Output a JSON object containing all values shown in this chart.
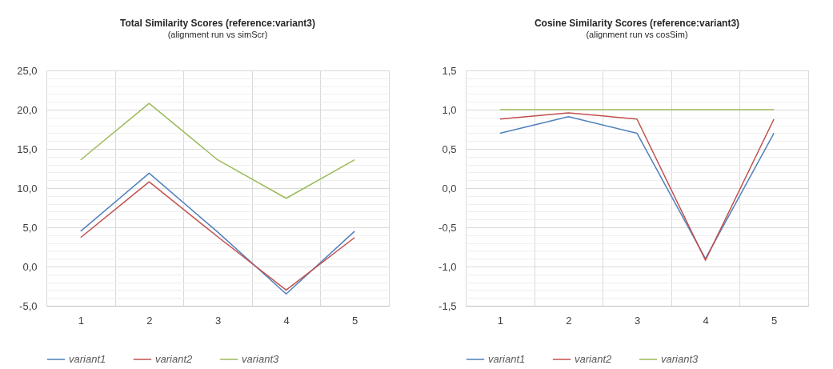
{
  "chart_data": [
    {
      "type": "line",
      "title": "Total Similarity Scores (reference:variant3)",
      "subtitle": "(alignment run vs simScr)",
      "categories": [
        "1",
        "2",
        "3",
        "4",
        "5"
      ],
      "series": [
        {
          "name": "variant1",
          "color": "#4f81bd",
          "values": [
            4.5,
            11.9,
            4.4,
            -3.5,
            4.5
          ]
        },
        {
          "name": "variant2",
          "color": "#c0504d",
          "values": [
            3.7,
            10.8,
            3.8,
            -3.0,
            3.7
          ]
        },
        {
          "name": "variant3",
          "color": "#9bbb59",
          "values": [
            13.6,
            20.8,
            13.6,
            8.7,
            13.6
          ]
        }
      ],
      "ylim": [
        -5,
        25
      ],
      "yticks": [
        {
          "value": -5,
          "label": "-5,0"
        },
        {
          "value": -4,
          "label": null
        },
        {
          "value": -3,
          "label": null
        },
        {
          "value": -2,
          "label": null
        },
        {
          "value": -1,
          "label": null
        },
        {
          "value": 0,
          "label": "0,0"
        },
        {
          "value": 1,
          "label": null
        },
        {
          "value": 2,
          "label": null
        },
        {
          "value": 3,
          "label": null
        },
        {
          "value": 4,
          "label": null
        },
        {
          "value": 5,
          "label": "5,0"
        },
        {
          "value": 6,
          "label": null
        },
        {
          "value": 7,
          "label": null
        },
        {
          "value": 8,
          "label": null
        },
        {
          "value": 9,
          "label": null
        },
        {
          "value": 10,
          "label": "10,0"
        },
        {
          "value": 11,
          "label": null
        },
        {
          "value": 12,
          "label": null
        },
        {
          "value": 13,
          "label": null
        },
        {
          "value": 14,
          "label": null
        },
        {
          "value": 15,
          "label": "15,0"
        },
        {
          "value": 16,
          "label": null
        },
        {
          "value": 17,
          "label": null
        },
        {
          "value": 18,
          "label": null
        },
        {
          "value": 19,
          "label": null
        },
        {
          "value": 20,
          "label": "20,0"
        },
        {
          "value": 21,
          "label": null
        },
        {
          "value": 22,
          "label": null
        },
        {
          "value": 23,
          "label": null
        },
        {
          "value": 24,
          "label": null
        },
        {
          "value": 25,
          "label": "25,0"
        }
      ],
      "grid": true,
      "legend": "bottom"
    },
    {
      "type": "line",
      "title": "Cosine Similarity Scores (reference:variant3)",
      "subtitle": "(alignment run vs cosSim)",
      "categories": [
        "1",
        "2",
        "3",
        "4",
        "5"
      ],
      "series": [
        {
          "name": "variant1",
          "color": "#4f81bd",
          "values": [
            0.7,
            0.91,
            0.7,
            -0.9,
            0.7
          ]
        },
        {
          "name": "variant2",
          "color": "#c0504d",
          "values": [
            0.88,
            0.96,
            0.88,
            -0.92,
            0.88
          ]
        },
        {
          "name": "variant3",
          "color": "#9bbb59",
          "values": [
            1.0,
            1.0,
            1.0,
            1.0,
            1.0
          ]
        }
      ],
      "ylim": [
        -1.5,
        1.5
      ],
      "yticks": [
        {
          "value": -1.5,
          "label": "-1,5"
        },
        {
          "value": -1.4,
          "label": null
        },
        {
          "value": -1.3,
          "label": null
        },
        {
          "value": -1.2,
          "label": null
        },
        {
          "value": -1.1,
          "label": null
        },
        {
          "value": -1,
          "label": "-1,0"
        },
        {
          "value": -0.9,
          "label": null
        },
        {
          "value": -0.8,
          "label": null
        },
        {
          "value": -0.7,
          "label": null
        },
        {
          "value": -0.6,
          "label": null
        },
        {
          "value": -0.5,
          "label": "-0,5"
        },
        {
          "value": -0.4,
          "label": null
        },
        {
          "value": -0.3,
          "label": null
        },
        {
          "value": -0.2,
          "label": null
        },
        {
          "value": -0.1,
          "label": null
        },
        {
          "value": 0,
          "label": "0,0"
        },
        {
          "value": 0.1,
          "label": null
        },
        {
          "value": 0.2,
          "label": null
        },
        {
          "value": 0.3,
          "label": null
        },
        {
          "value": 0.4,
          "label": null
        },
        {
          "value": 0.5,
          "label": "0,5"
        },
        {
          "value": 0.6,
          "label": null
        },
        {
          "value": 0.7,
          "label": null
        },
        {
          "value": 0.8,
          "label": null
        },
        {
          "value": 0.9,
          "label": null
        },
        {
          "value": 1,
          "label": "1,0"
        },
        {
          "value": 1.1,
          "label": null
        },
        {
          "value": 1.2,
          "label": null
        },
        {
          "value": 1.3,
          "label": null
        },
        {
          "value": 1.4,
          "label": null
        },
        {
          "value": 1.5,
          "label": "1,5"
        }
      ],
      "grid": true,
      "legend": "bottom"
    }
  ]
}
